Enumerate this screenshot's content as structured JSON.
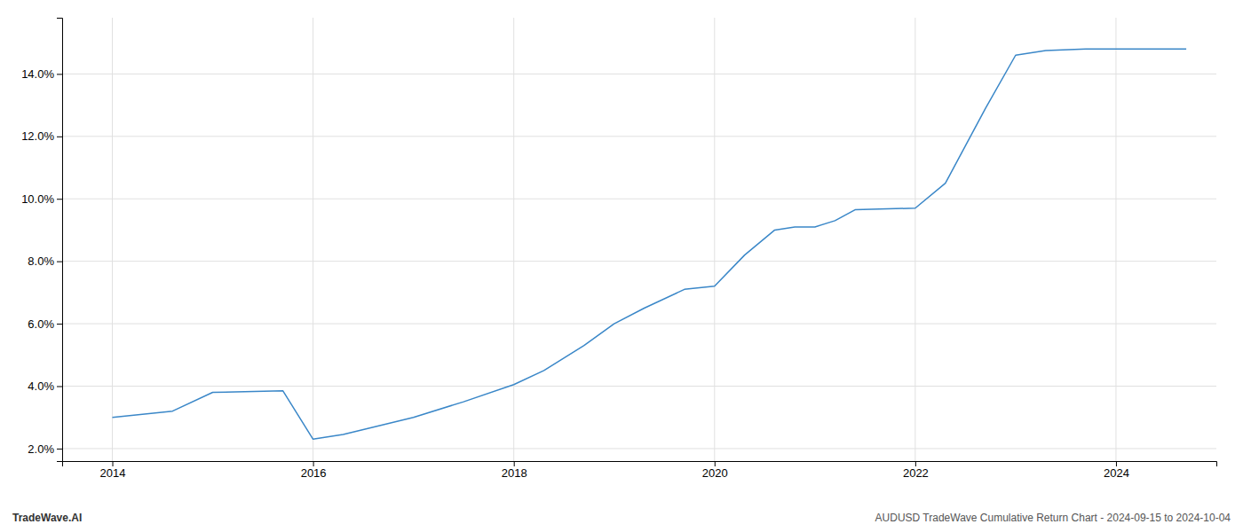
{
  "chart_data": {
    "type": "line",
    "x": [
      2014.0,
      2014.6,
      2015.0,
      2015.7,
      2016.0,
      2016.3,
      2017.0,
      2017.5,
      2018.0,
      2018.3,
      2018.7,
      2019.0,
      2019.3,
      2019.7,
      2020.0,
      2020.3,
      2020.6,
      2020.8,
      2021.0,
      2021.2,
      2021.4,
      2022.0,
      2022.3,
      2022.7,
      2023.0,
      2023.3,
      2023.7,
      2024.0,
      2024.7
    ],
    "values": [
      3.0,
      3.2,
      3.8,
      3.85,
      2.3,
      2.45,
      3.0,
      3.5,
      4.05,
      4.5,
      5.3,
      6.0,
      6.5,
      7.1,
      7.2,
      8.2,
      9.0,
      9.1,
      9.1,
      9.3,
      9.65,
      9.7,
      10.5,
      12.9,
      14.6,
      14.75,
      14.8,
      14.8,
      14.8
    ],
    "color": "#3a87c8",
    "xlim": [
      2013.5,
      2025.0
    ],
    "ylim": [
      1.6,
      15.8
    ],
    "xticks": [
      2014,
      2016,
      2018,
      2020,
      2022,
      2024
    ],
    "yticks": [
      {
        "value": 2.0,
        "label": "2.0%"
      },
      {
        "value": 4.0,
        "label": "4.0%"
      },
      {
        "value": 6.0,
        "label": "6.0%"
      },
      {
        "value": 8.0,
        "label": "8.0%"
      },
      {
        "value": 10.0,
        "label": "10.0%"
      },
      {
        "value": 12.0,
        "label": "12.0%"
      },
      {
        "value": 14.0,
        "label": "14.0%"
      }
    ],
    "grid": true,
    "annotations": [
      "TradeWave.AI",
      "AUDUSD TradeWave Cumulative Return Chart - 2024-09-15 to 2024-10-04"
    ]
  }
}
